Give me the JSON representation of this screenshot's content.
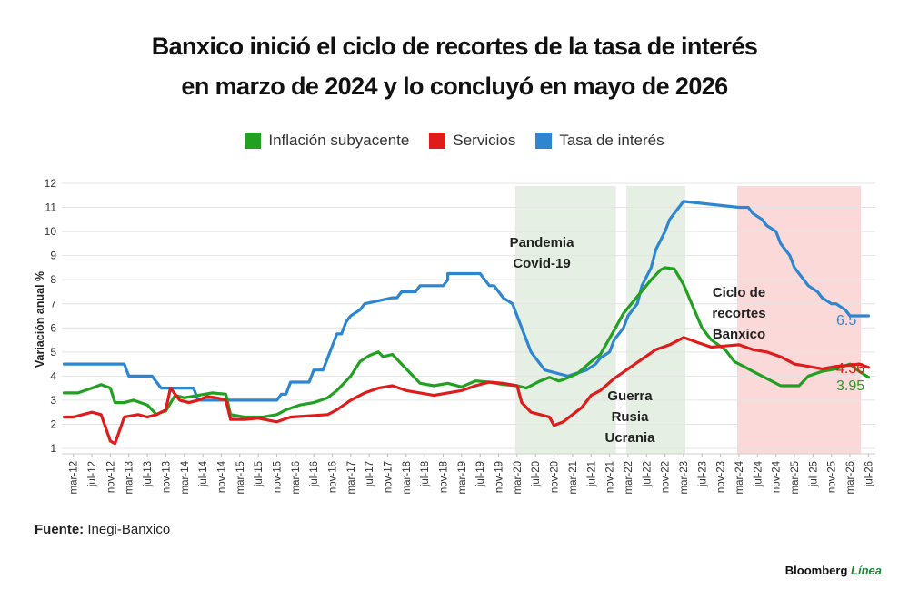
{
  "title_line1": "Banxico inició el ciclo de recortes de la tasa de interés",
  "title_line2": "en marzo de 2024 y lo concluyó en mayo de 2026",
  "source_label": "Fuente:",
  "source_text": " Inegi-Banxico",
  "brand": {
    "name": "Bloomberg ",
    "accent": "Línea"
  },
  "colors": {
    "green": "#22a022",
    "red": "#e01b1b",
    "blue": "#2f86d0",
    "shade_green": "#e5efe3",
    "shade_red": "#fbd9d9"
  },
  "chart_data": {
    "type": "line",
    "title": "Banxico inició el ciclo de recortes de la tasa de interés en marzo de 2024 y lo concluyó en mayo de 2026",
    "ylabel": "Variación anual %",
    "xlabel": "",
    "ylim": [
      1,
      12
    ],
    "yticks": [
      1,
      2,
      3,
      4,
      5,
      6,
      7,
      8,
      9,
      10,
      11,
      12
    ],
    "xrange": [
      "2012-01",
      "2026-08"
    ],
    "xticks": [
      "mar-12",
      "jul-12",
      "nov-12",
      "mar-13",
      "jul-13",
      "nov-13",
      "mar-14",
      "jul-14",
      "nov-14",
      "mar-15",
      "jul-15",
      "nov-15",
      "mar-16",
      "jul-16",
      "nov-16",
      "mar-17",
      "jul-17",
      "nov-17",
      "mar-18",
      "jul-18",
      "nov-18",
      "mar-19",
      "jul-19",
      "nov-19",
      "mar-20",
      "jul-20",
      "nov-20",
      "mar-21",
      "jul-21",
      "nov-21",
      "mar-22",
      "jul-22",
      "nov-22",
      "mar-23",
      "jul-23",
      "nov-23",
      "mar-24",
      "jul-24",
      "nov-24",
      "mar-25",
      "jul-25",
      "nov-25",
      "mar-26",
      "jul-26"
    ],
    "grid": "horizontal",
    "legend_position": "top",
    "shaded_periods": [
      {
        "start": "2020-03",
        "end": "2021-12",
        "label": [
          "Pandemia",
          "Covid-19"
        ],
        "color": "green"
      },
      {
        "start": "2022-03",
        "end": "2023-03",
        "label": [
          "Guerra",
          "Rusia",
          "Ucrania"
        ],
        "color": "green"
      },
      {
        "start": "2024-03",
        "end": "2026-05",
        "label": [
          "Ciclo de",
          "recortes",
          "Banxico"
        ],
        "color": "red"
      }
    ],
    "series": [
      {
        "name": "Inflación subyacente",
        "color": "green",
        "end_label": "3.95",
        "points": [
          [
            "2012-01",
            3.3
          ],
          [
            "2012-04",
            3.3
          ],
          [
            "2012-07",
            3.5
          ],
          [
            "2012-09",
            3.65
          ],
          [
            "2012-11",
            3.5
          ],
          [
            "2012-12",
            2.9
          ],
          [
            "2013-02",
            2.9
          ],
          [
            "2013-04",
            3.0
          ],
          [
            "2013-07",
            2.8
          ],
          [
            "2013-09",
            2.4
          ],
          [
            "2013-10",
            2.5
          ],
          [
            "2013-11",
            2.55
          ],
          [
            "2014-01",
            3.2
          ],
          [
            "2014-03",
            3.1
          ],
          [
            "2014-06",
            3.2
          ],
          [
            "2014-09",
            3.3
          ],
          [
            "2014-12",
            3.25
          ],
          [
            "2015-01",
            2.4
          ],
          [
            "2015-04",
            2.3
          ],
          [
            "2015-08",
            2.3
          ],
          [
            "2015-11",
            2.4
          ],
          [
            "2016-01",
            2.6
          ],
          [
            "2016-04",
            2.8
          ],
          [
            "2016-07",
            2.9
          ],
          [
            "2016-10",
            3.1
          ],
          [
            "2016-12",
            3.4
          ],
          [
            "2017-03",
            4.0
          ],
          [
            "2017-05",
            4.6
          ],
          [
            "2017-07",
            4.85
          ],
          [
            "2017-09",
            5.0
          ],
          [
            "2017-10",
            4.8
          ],
          [
            "2017-12",
            4.9
          ],
          [
            "2018-03",
            4.3
          ],
          [
            "2018-06",
            3.7
          ],
          [
            "2018-09",
            3.6
          ],
          [
            "2018-12",
            3.7
          ],
          [
            "2019-03",
            3.55
          ],
          [
            "2019-06",
            3.8
          ],
          [
            "2019-09",
            3.75
          ],
          [
            "2019-12",
            3.65
          ],
          [
            "2020-03",
            3.6
          ],
          [
            "2020-05",
            3.5
          ],
          [
            "2020-08",
            3.8
          ],
          [
            "2020-10",
            3.95
          ],
          [
            "2020-12",
            3.8
          ],
          [
            "2021-01",
            3.85
          ],
          [
            "2021-04",
            4.1
          ],
          [
            "2021-07",
            4.6
          ],
          [
            "2021-09",
            4.9
          ],
          [
            "2021-12",
            5.9
          ],
          [
            "2022-02",
            6.6
          ],
          [
            "2022-05",
            7.3
          ],
          [
            "2022-08",
            8.0
          ],
          [
            "2022-10",
            8.4
          ],
          [
            "2022-11",
            8.5
          ],
          [
            "2023-01",
            8.45
          ],
          [
            "2023-03",
            7.8
          ],
          [
            "2023-05",
            6.9
          ],
          [
            "2023-07",
            6.0
          ],
          [
            "2023-09",
            5.5
          ],
          [
            "2023-12",
            5.1
          ],
          [
            "2024-02",
            4.6
          ],
          [
            "2024-04",
            4.4
          ],
          [
            "2024-06",
            4.2
          ],
          [
            "2024-08",
            4.0
          ],
          [
            "2024-10",
            3.8
          ],
          [
            "2024-12",
            3.6
          ],
          [
            "2025-02",
            3.6
          ],
          [
            "2025-04",
            3.6
          ],
          [
            "2025-06",
            4.0
          ],
          [
            "2025-09",
            4.2
          ],
          [
            "2025-12",
            4.3
          ],
          [
            "2026-03",
            4.5
          ],
          [
            "2026-05",
            4.2
          ],
          [
            "2026-07",
            3.95
          ]
        ]
      },
      {
        "name": "Servicios",
        "color": "red",
        "end_label": "4.36",
        "points": [
          [
            "2012-01",
            2.3
          ],
          [
            "2012-03",
            2.3
          ],
          [
            "2012-05",
            2.4
          ],
          [
            "2012-07",
            2.5
          ],
          [
            "2012-09",
            2.4
          ],
          [
            "2012-11",
            1.3
          ],
          [
            "2012-12",
            1.2
          ],
          [
            "2013-02",
            2.3
          ],
          [
            "2013-05",
            2.4
          ],
          [
            "2013-07",
            2.3
          ],
          [
            "2013-09",
            2.4
          ],
          [
            "2013-11",
            2.6
          ],
          [
            "2013-12",
            3.5
          ],
          [
            "2014-02",
            3.0
          ],
          [
            "2014-04",
            2.9
          ],
          [
            "2014-06",
            3.0
          ],
          [
            "2014-08",
            3.15
          ],
          [
            "2014-10",
            3.1
          ],
          [
            "2014-12",
            3.0
          ],
          [
            "2015-01",
            2.2
          ],
          [
            "2015-04",
            2.2
          ],
          [
            "2015-07",
            2.25
          ],
          [
            "2015-11",
            2.1
          ],
          [
            "2016-02",
            2.3
          ],
          [
            "2016-06",
            2.35
          ],
          [
            "2016-10",
            2.4
          ],
          [
            "2016-12",
            2.6
          ],
          [
            "2017-03",
            3.0
          ],
          [
            "2017-06",
            3.3
          ],
          [
            "2017-09",
            3.5
          ],
          [
            "2017-12",
            3.6
          ],
          [
            "2018-03",
            3.4
          ],
          [
            "2018-06",
            3.3
          ],
          [
            "2018-09",
            3.2
          ],
          [
            "2018-12",
            3.3
          ],
          [
            "2019-03",
            3.4
          ],
          [
            "2019-06",
            3.6
          ],
          [
            "2019-09",
            3.75
          ],
          [
            "2019-12",
            3.7
          ],
          [
            "2020-03",
            3.6
          ],
          [
            "2020-04",
            2.9
          ],
          [
            "2020-06",
            2.5
          ],
          [
            "2020-08",
            2.4
          ],
          [
            "2020-10",
            2.3
          ],
          [
            "2020-11",
            1.95
          ],
          [
            "2021-01",
            2.1
          ],
          [
            "2021-03",
            2.4
          ],
          [
            "2021-05",
            2.7
          ],
          [
            "2021-07",
            3.2
          ],
          [
            "2021-09",
            3.4
          ],
          [
            "2021-12",
            3.9
          ],
          [
            "2022-03",
            4.3
          ],
          [
            "2022-06",
            4.7
          ],
          [
            "2022-09",
            5.1
          ],
          [
            "2022-12",
            5.3
          ],
          [
            "2023-03",
            5.6
          ],
          [
            "2023-06",
            5.4
          ],
          [
            "2023-09",
            5.2
          ],
          [
            "2023-12",
            5.25
          ],
          [
            "2024-03",
            5.3
          ],
          [
            "2024-06",
            5.1
          ],
          [
            "2024-09",
            5.0
          ],
          [
            "2024-12",
            4.8
          ],
          [
            "2025-03",
            4.5
          ],
          [
            "2025-06",
            4.4
          ],
          [
            "2025-09",
            4.3
          ],
          [
            "2025-12",
            4.4
          ],
          [
            "2026-03",
            4.45
          ],
          [
            "2026-05",
            4.5
          ],
          [
            "2026-07",
            4.36
          ]
        ]
      },
      {
        "name": "Tasa de interés",
        "color": "blue",
        "end_label": "6.5",
        "points": [
          [
            "2012-01",
            4.5
          ],
          [
            "2013-02",
            4.5
          ],
          [
            "2013-03",
            4.0
          ],
          [
            "2013-08",
            4.0
          ],
          [
            "2013-09",
            3.75
          ],
          [
            "2013-10",
            3.5
          ],
          [
            "2014-05",
            3.5
          ],
          [
            "2014-06",
            3.0
          ],
          [
            "2015-11",
            3.0
          ],
          [
            "2015-12",
            3.25
          ],
          [
            "2016-01",
            3.25
          ],
          [
            "2016-02",
            3.75
          ],
          [
            "2016-06",
            3.75
          ],
          [
            "2016-07",
            4.25
          ],
          [
            "2016-09",
            4.25
          ],
          [
            "2016-10",
            4.75
          ],
          [
            "2016-11",
            5.25
          ],
          [
            "2016-12",
            5.75
          ],
          [
            "2017-01",
            5.75
          ],
          [
            "2017-02",
            6.25
          ],
          [
            "2017-03",
            6.5
          ],
          [
            "2017-05",
            6.75
          ],
          [
            "2017-06",
            7.0
          ],
          [
            "2017-12",
            7.25
          ],
          [
            "2018-01",
            7.25
          ],
          [
            "2018-02",
            7.5
          ],
          [
            "2018-05",
            7.5
          ],
          [
            "2018-06",
            7.75
          ],
          [
            "2018-11",
            7.75
          ],
          [
            "2018-12",
            8.0
          ],
          [
            "2018-12",
            8.25
          ],
          [
            "2019-07",
            8.25
          ],
          [
            "2019-08",
            8.0
          ],
          [
            "2019-09",
            7.75
          ],
          [
            "2019-10",
            7.75
          ],
          [
            "2019-11",
            7.5
          ],
          [
            "2019-12",
            7.25
          ],
          [
            "2020-02",
            7.0
          ],
          [
            "2020-03",
            6.5
          ],
          [
            "2020-04",
            6.0
          ],
          [
            "2020-05",
            5.5
          ],
          [
            "2020-06",
            5.0
          ],
          [
            "2020-08",
            4.5
          ],
          [
            "2020-09",
            4.25
          ],
          [
            "2021-02",
            4.0
          ],
          [
            "2021-06",
            4.25
          ],
          [
            "2021-08",
            4.5
          ],
          [
            "2021-09",
            4.75
          ],
          [
            "2021-11",
            5.0
          ],
          [
            "2021-12",
            5.5
          ],
          [
            "2022-02",
            6.0
          ],
          [
            "2022-03",
            6.5
          ],
          [
            "2022-05",
            7.0
          ],
          [
            "2022-06",
            7.75
          ],
          [
            "2022-08",
            8.5
          ],
          [
            "2022-09",
            9.25
          ],
          [
            "2022-11",
            10.0
          ],
          [
            "2022-12",
            10.5
          ],
          [
            "2023-02",
            11.0
          ],
          [
            "2023-03",
            11.25
          ],
          [
            "2024-03",
            11.0
          ],
          [
            "2024-05",
            11.0
          ],
          [
            "2024-06",
            10.75
          ],
          [
            "2024-08",
            10.5
          ],
          [
            "2024-09",
            10.25
          ],
          [
            "2024-11",
            10.0
          ],
          [
            "2024-12",
            9.5
          ],
          [
            "2025-02",
            9.0
          ],
          [
            "2025-03",
            8.5
          ],
          [
            "2025-05",
            8.0
          ],
          [
            "2025-06",
            7.75
          ],
          [
            "2025-08",
            7.5
          ],
          [
            "2025-09",
            7.25
          ],
          [
            "2025-11",
            7.0
          ],
          [
            "2025-12",
            7.0
          ],
          [
            "2026-02",
            6.75
          ],
          [
            "2026-03",
            6.5
          ],
          [
            "2026-07",
            6.5
          ]
        ]
      }
    ]
  }
}
